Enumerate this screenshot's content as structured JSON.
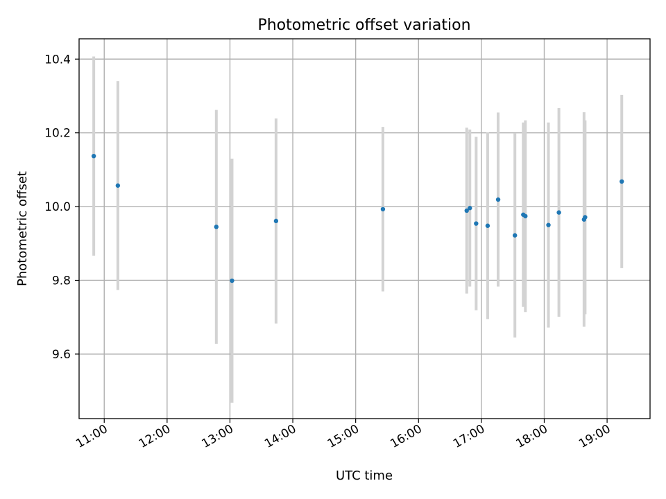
{
  "chart_data": {
    "type": "scatter",
    "title": "Photometric offset variation",
    "xlabel": "UTC time",
    "ylabel": "Photometric offset",
    "xlim": [
      "10:36",
      "19:41"
    ],
    "ylim": [
      9.425,
      10.455
    ],
    "x_ticks": [
      "11:00",
      "12:00",
      "13:00",
      "14:00",
      "15:00",
      "16:00",
      "17:00",
      "18:00",
      "19:00"
    ],
    "y_ticks": [
      9.6,
      9.8,
      10.0,
      10.2,
      10.4
    ],
    "y_tick_labels": [
      "9.6",
      "9.8",
      "10.0",
      "10.2",
      "10.4"
    ],
    "grid": true,
    "point_color": "#1f77b4",
    "errorbar_color": "#d3d3d3",
    "points": [
      {
        "x": "10:50",
        "y": 10.137,
        "err": 0.27
      },
      {
        "x": "11:13",
        "y": 10.057,
        "err": 0.283
      },
      {
        "x": "12:47",
        "y": 9.945,
        "err": 0.317
      },
      {
        "x": "13:02",
        "y": 9.799,
        "err": 0.331
      },
      {
        "x": "13:44",
        "y": 9.961,
        "err": 0.278
      },
      {
        "x": "15:26",
        "y": 9.993,
        "err": 0.223
      },
      {
        "x": "16:46",
        "y": 9.989,
        "err": 0.225
      },
      {
        "x": "16:49",
        "y": 9.996,
        "err": 0.213
      },
      {
        "x": "16:55",
        "y": 9.954,
        "err": 0.235
      },
      {
        "x": "17:06",
        "y": 9.948,
        "err": 0.253
      },
      {
        "x": "17:16",
        "y": 10.019,
        "err": 0.236
      },
      {
        "x": "17:32",
        "y": 9.922,
        "err": 0.277
      },
      {
        "x": "17:40",
        "y": 9.978,
        "err": 0.25
      },
      {
        "x": "17:42",
        "y": 9.974,
        "err": 0.26
      },
      {
        "x": "18:04",
        "y": 9.95,
        "err": 0.278
      },
      {
        "x": "18:14",
        "y": 9.984,
        "err": 0.283
      },
      {
        "x": "18:38",
        "y": 9.965,
        "err": 0.291
      },
      {
        "x": "18:39",
        "y": 9.971,
        "err": 0.263
      },
      {
        "x": "19:14",
        "y": 10.068,
        "err": 0.235
      }
    ]
  }
}
